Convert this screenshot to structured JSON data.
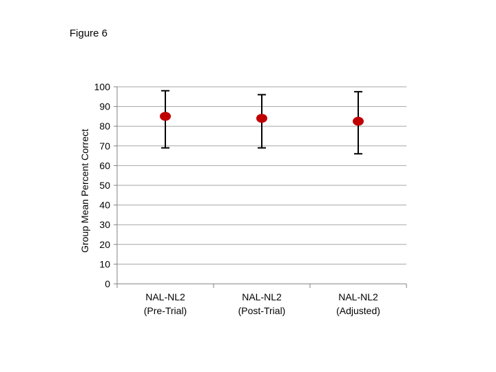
{
  "figure_label": "Figure 6",
  "chart_data": {
    "type": "scatter",
    "title": "",
    "xlabel": "",
    "ylabel": "Group Mean Percent Correct",
    "ylim": [
      0,
      100
    ],
    "yticks": [
      0,
      10,
      20,
      30,
      40,
      50,
      60,
      70,
      80,
      90,
      100
    ],
    "grid": true,
    "categories": [
      [
        "NAL-NL2",
        "(Pre-Trial)"
      ],
      [
        "NAL-NL2",
        "(Post-Trial)"
      ],
      [
        "NAL-NL2",
        "(Adjusted)"
      ]
    ],
    "values": [
      85,
      84,
      82.5
    ],
    "error_low": [
      69,
      69,
      66
    ],
    "error_high": [
      98,
      96,
      97.5
    ],
    "colors": {
      "point": "#C00000",
      "grid": "#A6A6A6",
      "axis": "#808080",
      "error_bar": "#000000"
    }
  }
}
